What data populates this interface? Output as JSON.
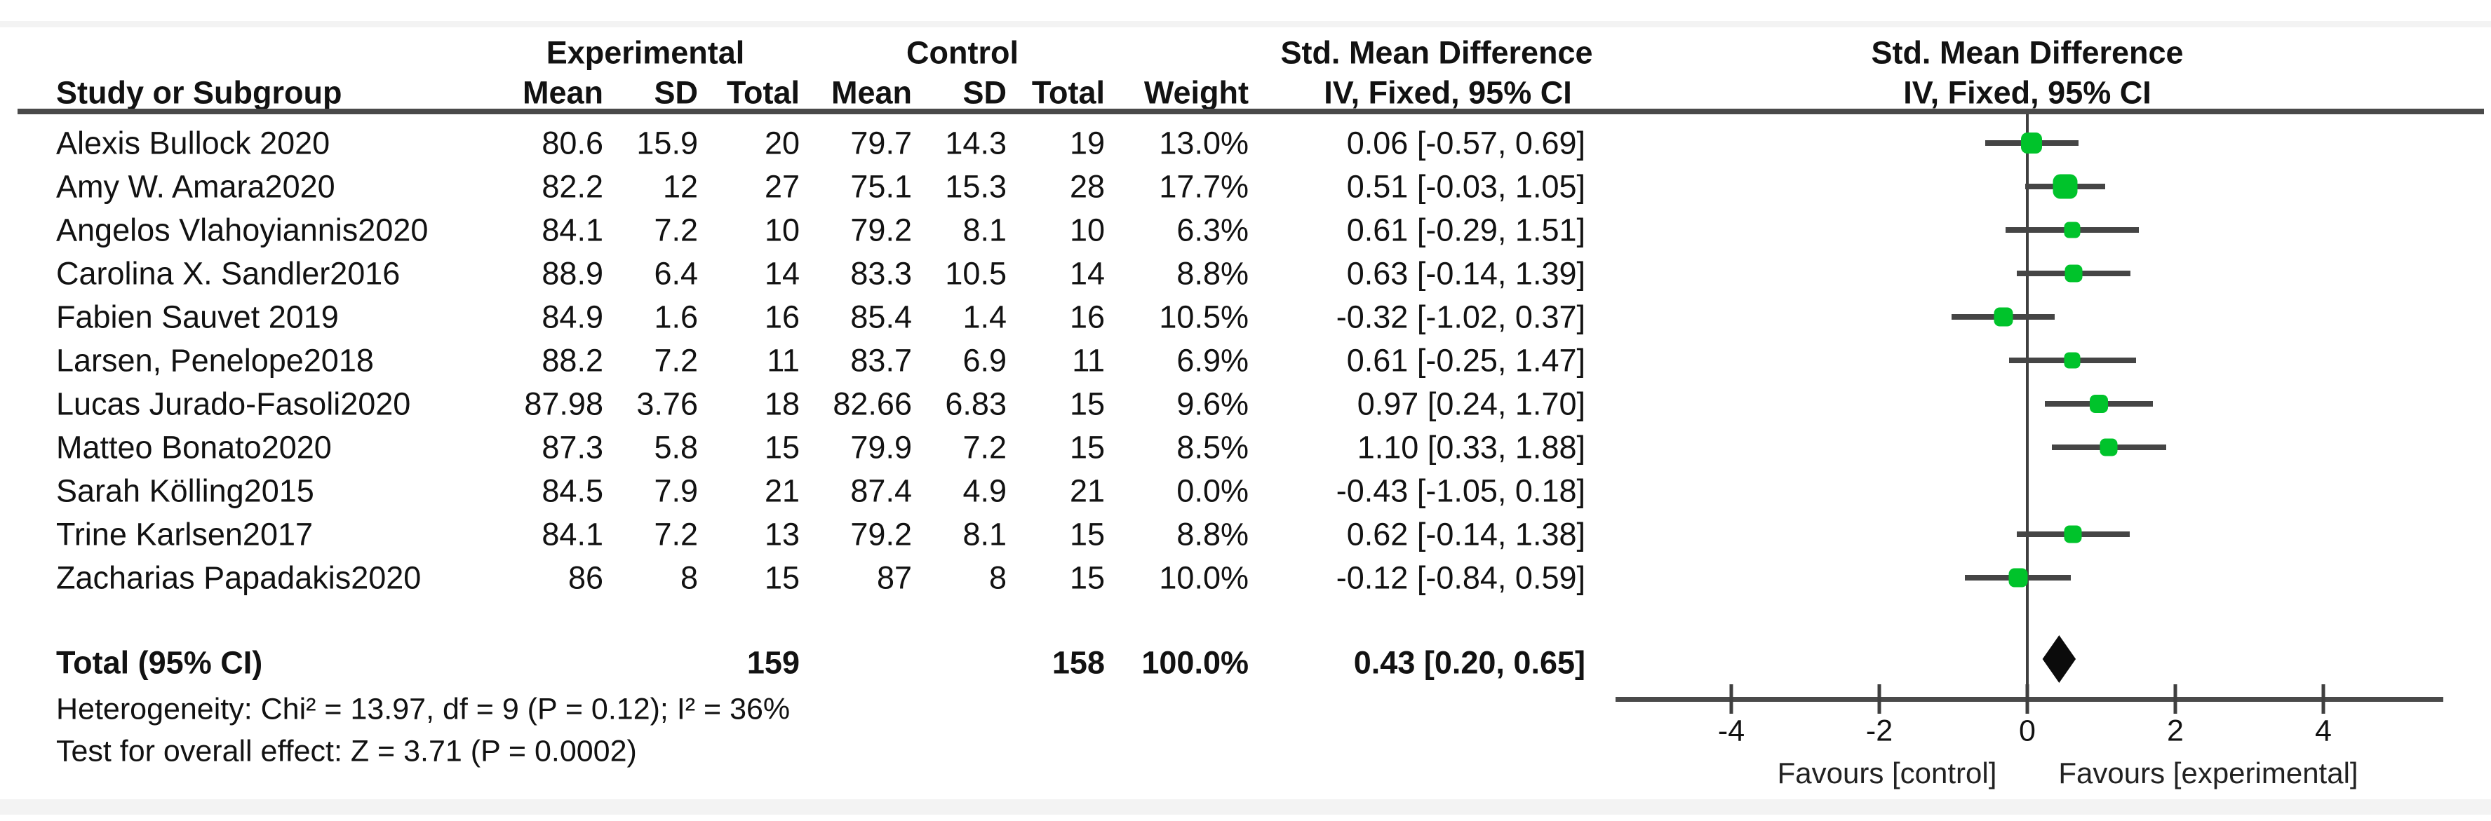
{
  "chart_data": {
    "type": "forest",
    "effect_header": "Std. Mean Difference",
    "method_header": "IV, Fixed, 95% CI",
    "groups": {
      "experimental": "Experimental",
      "control": "Control"
    },
    "columns": {
      "study": "Study or Subgroup",
      "mean": "Mean",
      "sd": "SD",
      "total": "Total",
      "weight": "Weight"
    },
    "studies": [
      {
        "name": "Alexis Bullock 2020",
        "mean_e": "80.6",
        "sd_e": "15.9",
        "n_e": "20",
        "mean_c": "79.7",
        "sd_c": "14.3",
        "n_c": "19",
        "weight": "13.0%",
        "ci": "0.06 [-0.57, 0.69]",
        "est": 0.06,
        "lo": -0.57,
        "hi": 0.69,
        "weight_pct": 13.0
      },
      {
        "name": "Amy W. Amara2020",
        "mean_e": "82.2",
        "sd_e": "12",
        "n_e": "27",
        "mean_c": "75.1",
        "sd_c": "15.3",
        "n_c": "28",
        "weight": "17.7%",
        "ci": "0.51 [-0.03, 1.05]",
        "est": 0.51,
        "lo": -0.03,
        "hi": 1.05,
        "weight_pct": 17.7
      },
      {
        "name": "Angelos Vlahoyiannis2020",
        "mean_e": "84.1",
        "sd_e": "7.2",
        "n_e": "10",
        "mean_c": "79.2",
        "sd_c": "8.1",
        "n_c": "10",
        "weight": "6.3%",
        "ci": "0.61 [-0.29, 1.51]",
        "est": 0.61,
        "lo": -0.29,
        "hi": 1.51,
        "weight_pct": 6.3
      },
      {
        "name": "Carolina X. Sandler2016",
        "mean_e": "88.9",
        "sd_e": "6.4",
        "n_e": "14",
        "mean_c": "83.3",
        "sd_c": "10.5",
        "n_c": "14",
        "weight": "8.8%",
        "ci": "0.63 [-0.14, 1.39]",
        "est": 0.63,
        "lo": -0.14,
        "hi": 1.39,
        "weight_pct": 8.8
      },
      {
        "name": "Fabien Sauvet 2019",
        "mean_e": "84.9",
        "sd_e": "1.6",
        "n_e": "16",
        "mean_c": "85.4",
        "sd_c": "1.4",
        "n_c": "16",
        "weight": "10.5%",
        "ci": "-0.32 [-1.02, 0.37]",
        "est": -0.32,
        "lo": -1.02,
        "hi": 0.37,
        "weight_pct": 10.5
      },
      {
        "name": "Larsen, Penelope2018",
        "mean_e": "88.2",
        "sd_e": "7.2",
        "n_e": "11",
        "mean_c": "83.7",
        "sd_c": "6.9",
        "n_c": "11",
        "weight": "6.9%",
        "ci": "0.61 [-0.25, 1.47]",
        "est": 0.61,
        "lo": -0.25,
        "hi": 1.47,
        "weight_pct": 6.9
      },
      {
        "name": "Lucas Jurado-Fasoli2020",
        "mean_e": "87.98",
        "sd_e": "3.76",
        "n_e": "18",
        "mean_c": "82.66",
        "sd_c": "6.83",
        "n_c": "15",
        "weight": "9.6%",
        "ci": "0.97 [0.24, 1.70]",
        "est": 0.97,
        "lo": 0.24,
        "hi": 1.7,
        "weight_pct": 9.6
      },
      {
        "name": "Matteo Bonato2020",
        "mean_e": "87.3",
        "sd_e": "5.8",
        "n_e": "15",
        "mean_c": "79.9",
        "sd_c": "7.2",
        "n_c": "15",
        "weight": "8.5%",
        "ci": "1.10 [0.33, 1.88]",
        "est": 1.1,
        "lo": 0.33,
        "hi": 1.88,
        "weight_pct": 8.5
      },
      {
        "name": "Sarah Kölling2015",
        "mean_e": "84.5",
        "sd_e": "7.9",
        "n_e": "21",
        "mean_c": "87.4",
        "sd_c": "4.9",
        "n_c": "21",
        "weight": "0.0%",
        "ci": "-0.43 [-1.05, 0.18]",
        "est": -0.43,
        "lo": -1.05,
        "hi": 0.18,
        "weight_pct": 0.0
      },
      {
        "name": "Trine Karlsen2017",
        "mean_e": "84.1",
        "sd_e": "7.2",
        "n_e": "13",
        "mean_c": "79.2",
        "sd_c": "8.1",
        "n_c": "15",
        "weight": "8.8%",
        "ci": "0.62 [-0.14, 1.38]",
        "est": 0.62,
        "lo": -0.14,
        "hi": 1.38,
        "weight_pct": 8.8
      },
      {
        "name": "Zacharias Papadakis2020",
        "mean_e": "86",
        "sd_e": "8",
        "n_e": "15",
        "mean_c": "87",
        "sd_c": "8",
        "n_c": "15",
        "weight": "10.0%",
        "ci": "-0.12 [-0.84, 0.59]",
        "est": -0.12,
        "lo": -0.84,
        "hi": 0.59,
        "weight_pct": 10.0
      }
    ],
    "total": {
      "label": "Total (95% CI)",
      "n_e": "159",
      "n_c": "158",
      "weight": "100.0%",
      "ci": "0.43 [0.20, 0.65]",
      "est": 0.43,
      "lo": 0.2,
      "hi": 0.65
    },
    "heterogeneity_text": "Heterogeneity: Chi² = 13.97, df = 9 (P = 0.12); I² = 36%",
    "overall_test_text": "Test for overall effect: Z = 3.71 (P = 0.0002)",
    "axis": {
      "ticks": [
        -4,
        -2,
        0,
        2,
        4
      ],
      "tick_labels": [
        "-4",
        "-2",
        "0",
        "2",
        "4"
      ],
      "xmin": -5.56,
      "xmax": 5.62
    },
    "favours_left": "Favours [control]",
    "favours_right": "Favours [experimental]",
    "colors": {
      "marker_green": "#00c32b",
      "line_gray": "#4a4a4a",
      "diamond_black": "#0b0b0b"
    }
  }
}
